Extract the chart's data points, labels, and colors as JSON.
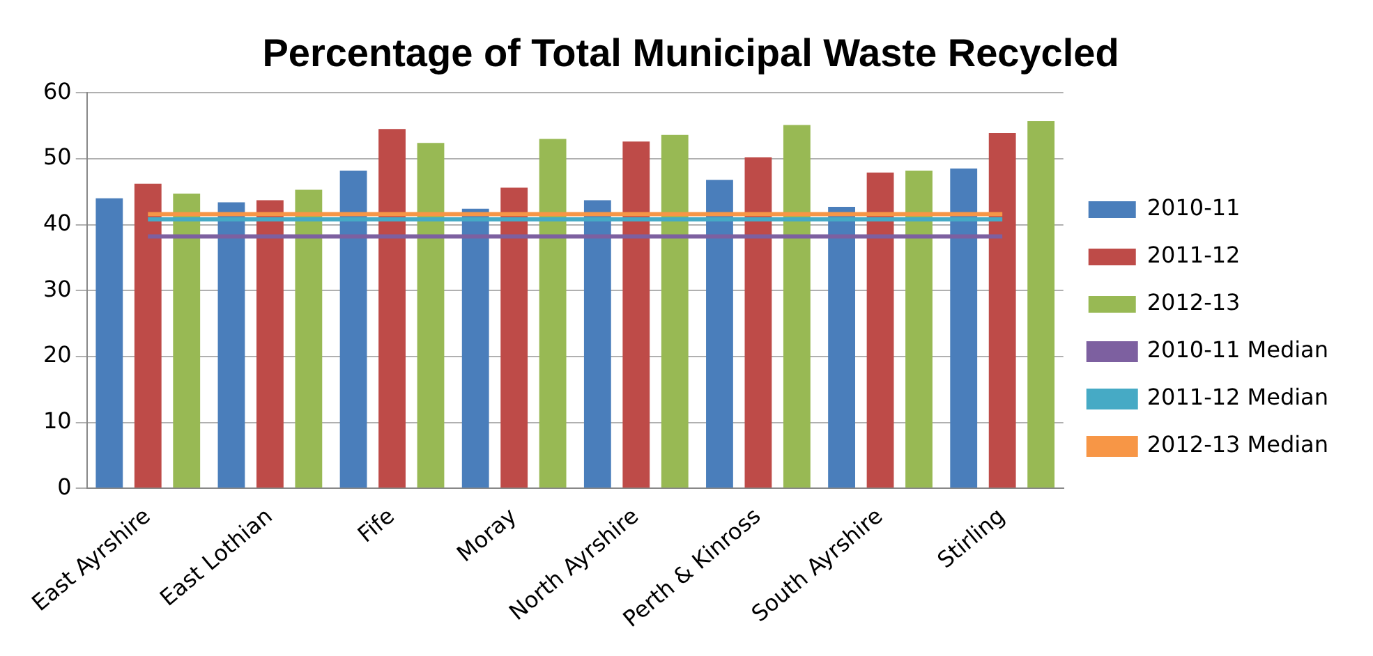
{
  "chart_data": {
    "type": "bar",
    "title": "Percentage of Total Municipal Waste Recycled",
    "categories": [
      "East Ayrshire",
      "East Lothian",
      "Fife",
      "Moray",
      "North Ayrshire",
      "Perth & Kinross",
      "South Ayrshire",
      "Stirling"
    ],
    "series": [
      {
        "name": "2010-11",
        "color": "#4a7ebb",
        "values": [
          44.0,
          43.4,
          48.2,
          42.4,
          43.7,
          46.8,
          42.7,
          48.5
        ]
      },
      {
        "name": "2011-12",
        "color": "#be4b48",
        "values": [
          46.2,
          43.7,
          54.5,
          45.6,
          52.6,
          50.2,
          47.9,
          53.9
        ]
      },
      {
        "name": "2012-13",
        "color": "#98b954",
        "values": [
          44.7,
          45.3,
          52.4,
          53.0,
          53.6,
          55.1,
          48.2,
          55.7
        ]
      },
      {
        "name": "2010-11 Median",
        "type": "line",
        "color": "#7d60a0",
        "values": [
          38.2,
          38.2,
          38.2,
          38.2,
          38.2,
          38.2,
          38.2,
          38.2
        ]
      },
      {
        "name": "2011-12 Median",
        "type": "line",
        "color": "#46aac5",
        "values": [
          40.8,
          40.8,
          40.8,
          40.8,
          40.8,
          40.8,
          40.8,
          40.8
        ]
      },
      {
        "name": "2012-13 Median",
        "type": "line",
        "color": "#f79646",
        "values": [
          41.6,
          41.6,
          41.6,
          41.6,
          41.6,
          41.6,
          41.6,
          41.6
        ]
      }
    ],
    "ylim": [
      0,
      60
    ],
    "yticks": [
      0,
      10,
      20,
      30,
      40,
      50,
      60
    ],
    "grid": "y",
    "legend": "right",
    "marker": "none"
  }
}
